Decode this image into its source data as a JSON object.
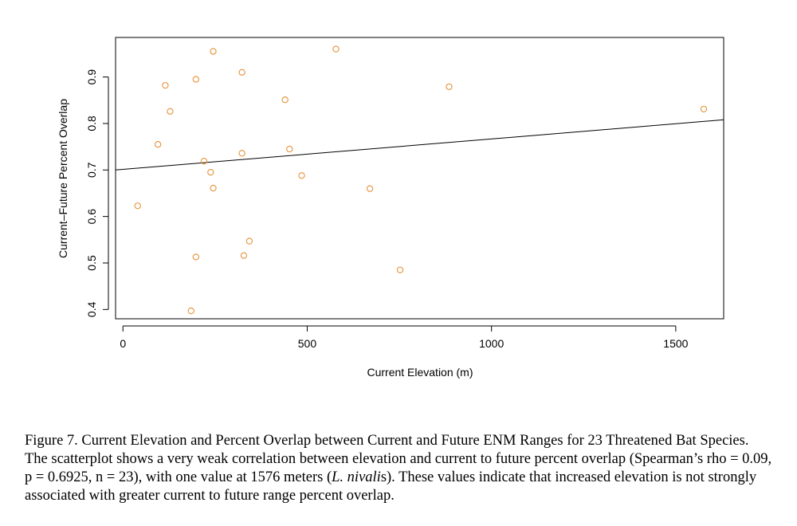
{
  "chart_data": {
    "type": "scatter",
    "title": "",
    "xlabel": "Current Elevation (m)",
    "ylabel": "Current–Future Percent Overlap",
    "xlim": [
      -20,
      1630
    ],
    "ylim": [
      0.38,
      0.985
    ],
    "x_ticks": [
      0,
      500,
      1000,
      1500
    ],
    "y_ticks": [
      0.4,
      0.5,
      0.6,
      0.7,
      0.8,
      0.9
    ],
    "x_tick_labels": [
      "0",
      "500",
      "1000",
      "1500"
    ],
    "y_tick_labels": [
      "0.4",
      "0.5",
      "0.6",
      "0.7",
      "0.8",
      "0.9"
    ],
    "marker": "open-circle",
    "marker_color": "#E69138",
    "line_color": "#000000",
    "regression_line": {
      "x": [
        -20,
        1630
      ],
      "y": [
        0.7,
        0.808
      ]
    },
    "points": [
      {
        "x": 40,
        "y": 0.623
      },
      {
        "x": 95,
        "y": 0.755
      },
      {
        "x": 115,
        "y": 0.882
      },
      {
        "x": 128,
        "y": 0.826
      },
      {
        "x": 185,
        "y": 0.397
      },
      {
        "x": 198,
        "y": 0.895
      },
      {
        "x": 198,
        "y": 0.513
      },
      {
        "x": 220,
        "y": 0.719
      },
      {
        "x": 238,
        "y": 0.695
      },
      {
        "x": 245,
        "y": 0.955
      },
      {
        "x": 245,
        "y": 0.661
      },
      {
        "x": 323,
        "y": 0.736
      },
      {
        "x": 323,
        "y": 0.91
      },
      {
        "x": 328,
        "y": 0.516
      },
      {
        "x": 343,
        "y": 0.547
      },
      {
        "x": 440,
        "y": 0.851
      },
      {
        "x": 452,
        "y": 0.745
      },
      {
        "x": 485,
        "y": 0.688
      },
      {
        "x": 578,
        "y": 0.96
      },
      {
        "x": 670,
        "y": 0.66
      },
      {
        "x": 752,
        "y": 0.485
      },
      {
        "x": 885,
        "y": 0.879
      },
      {
        "x": 1576,
        "y": 0.831
      }
    ]
  },
  "caption": {
    "part1": "Figure 7. Current Elevation and Percent Overlap between Current and Future ENM Ranges for 23 Threatened Bat Species. The scatterplot shows a very weak correlation between elevation and current to future percent overlap (Spearman’s rho = 0.09, p = 0.6925, n = 23), with one value at 1576 meters (",
    "italic": "L. nivali",
    "part2": "s). These values indicate that increased elevation is not strongly associated with greater current to future range percent overlap."
  }
}
